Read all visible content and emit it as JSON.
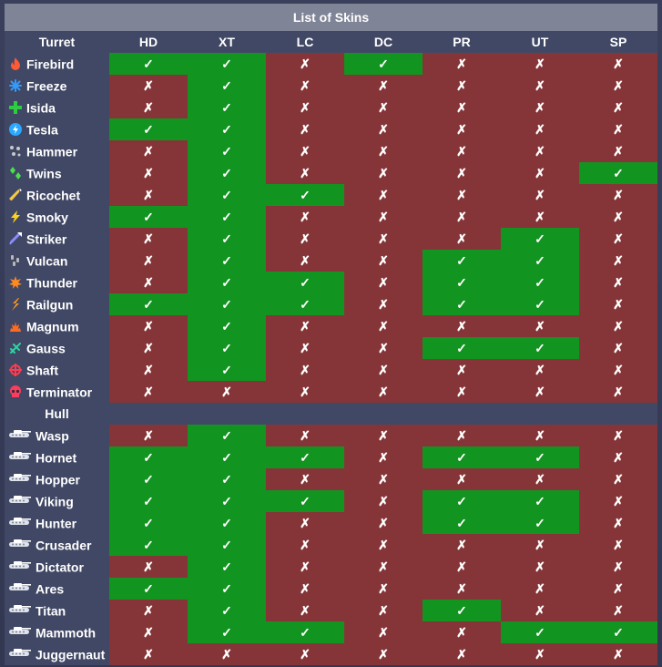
{
  "title": "List of Skins",
  "columns": [
    "HD",
    "XT",
    "LC",
    "DC",
    "PR",
    "UT",
    "SP"
  ],
  "turret_header": "Turret",
  "hull_header": "Hull",
  "marks": {
    "yes": "✓",
    "no": "✗"
  },
  "colors": {
    "yes": "#129420",
    "no": "#853537",
    "header": "#414865",
    "title": "#7f8496"
  },
  "turrets": [
    {
      "name": "Firebird",
      "icon": "flame-icon",
      "color": "#ff5a36",
      "skins": [
        1,
        1,
        0,
        1,
        0,
        0,
        0
      ]
    },
    {
      "name": "Freeze",
      "icon": "snowflake-icon",
      "color": "#2f9bff",
      "skins": [
        0,
        1,
        0,
        0,
        0,
        0,
        0
      ]
    },
    {
      "name": "Isida",
      "icon": "cross-icon",
      "color": "#2ecc40",
      "skins": [
        0,
        1,
        0,
        0,
        0,
        0,
        0
      ]
    },
    {
      "name": "Tesla",
      "icon": "tesla-icon",
      "color": "#29a8ff",
      "skins": [
        1,
        1,
        0,
        0,
        0,
        0,
        0
      ]
    },
    {
      "name": "Hammer",
      "icon": "shot-dots-icon",
      "color": "#c8c8c8",
      "skins": [
        0,
        1,
        0,
        0,
        0,
        0,
        0
      ]
    },
    {
      "name": "Twins",
      "icon": "twin-diamonds-icon",
      "color": "#49e04a",
      "skins": [
        0,
        1,
        0,
        0,
        0,
        0,
        1
      ]
    },
    {
      "name": "Ricochet",
      "icon": "ricochet-icon",
      "color": "#f2c84b",
      "skins": [
        0,
        1,
        1,
        0,
        0,
        0,
        0
      ]
    },
    {
      "name": "Smoky",
      "icon": "lightning-icon",
      "color": "#ffd21f",
      "skins": [
        1,
        1,
        0,
        0,
        0,
        0,
        0
      ]
    },
    {
      "name": "Striker",
      "icon": "rocket-icon",
      "color": "#8d8cff",
      "skins": [
        0,
        1,
        0,
        0,
        0,
        1,
        0
      ]
    },
    {
      "name": "Vulcan",
      "icon": "bullets-icon",
      "color": "#b8b8b8",
      "skins": [
        0,
        1,
        0,
        0,
        1,
        1,
        0
      ]
    },
    {
      "name": "Thunder",
      "icon": "burst-icon",
      "color": "#ff8a1f",
      "skins": [
        0,
        1,
        1,
        0,
        1,
        1,
        0
      ]
    },
    {
      "name": "Railgun",
      "icon": "bolt-icon",
      "color": "#ff9a1f",
      "skins": [
        1,
        1,
        1,
        0,
        1,
        1,
        0
      ]
    },
    {
      "name": "Magnum",
      "icon": "explosion-icon",
      "color": "#ff6a1f",
      "skins": [
        0,
        1,
        0,
        0,
        0,
        0,
        0
      ]
    },
    {
      "name": "Gauss",
      "icon": "gauss-icon",
      "color": "#2ed3a2",
      "skins": [
        0,
        1,
        0,
        0,
        1,
        1,
        0
      ]
    },
    {
      "name": "Shaft",
      "icon": "crosshair-icon",
      "color": "#ff3b4e",
      "skins": [
        0,
        1,
        0,
        0,
        0,
        0,
        0
      ]
    },
    {
      "name": "Terminator",
      "icon": "skull-icon",
      "color": "#ff3b5c",
      "skins": [
        0,
        0,
        0,
        0,
        0,
        0,
        0
      ]
    }
  ],
  "hulls": [
    {
      "name": "Wasp",
      "icon": "tank-icon",
      "skins": [
        0,
        1,
        0,
        0,
        0,
        0,
        0
      ]
    },
    {
      "name": "Hornet",
      "icon": "tank-icon",
      "skins": [
        1,
        1,
        1,
        0,
        1,
        1,
        0
      ]
    },
    {
      "name": "Hopper",
      "icon": "tank-icon",
      "skins": [
        1,
        1,
        0,
        0,
        0,
        0,
        0
      ]
    },
    {
      "name": "Viking",
      "icon": "tank-icon",
      "skins": [
        1,
        1,
        1,
        0,
        1,
        1,
        0
      ]
    },
    {
      "name": "Hunter",
      "icon": "tank-icon",
      "skins": [
        1,
        1,
        0,
        0,
        1,
        1,
        0
      ]
    },
    {
      "name": "Crusader",
      "icon": "tank-icon",
      "skins": [
        1,
        1,
        0,
        0,
        0,
        0,
        0
      ]
    },
    {
      "name": "Dictator",
      "icon": "tank-icon",
      "skins": [
        0,
        1,
        0,
        0,
        0,
        0,
        0
      ]
    },
    {
      "name": "Ares",
      "icon": "tank-icon",
      "skins": [
        1,
        1,
        0,
        0,
        0,
        0,
        0
      ]
    },
    {
      "name": "Titan",
      "icon": "tank-icon",
      "skins": [
        0,
        1,
        0,
        0,
        1,
        0,
        0
      ]
    },
    {
      "name": "Mammoth",
      "icon": "tank-icon",
      "skins": [
        0,
        1,
        1,
        0,
        0,
        1,
        1
      ]
    },
    {
      "name": "Juggernaut",
      "icon": "tank-icon",
      "skins": [
        0,
        0,
        0,
        0,
        0,
        0,
        0
      ]
    }
  ]
}
